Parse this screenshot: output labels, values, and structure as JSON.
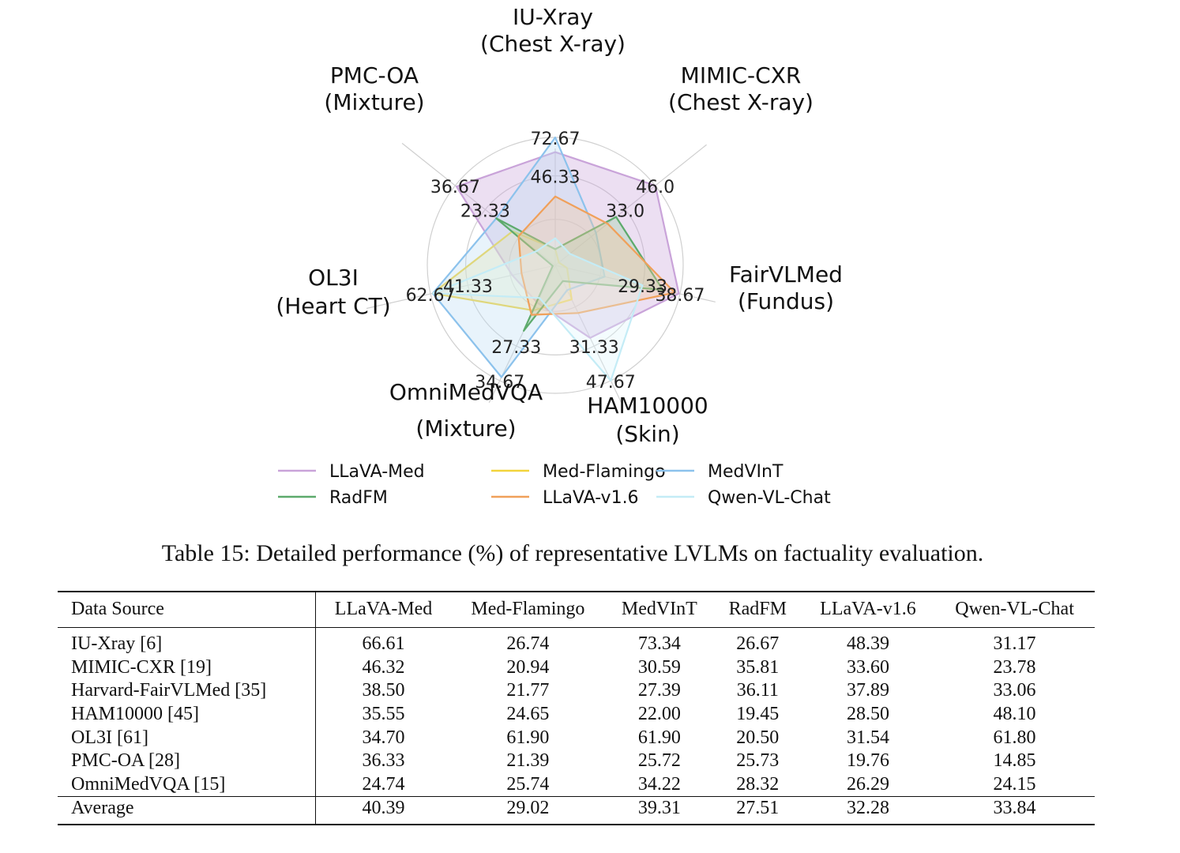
{
  "chart_data": {
    "type": "radar",
    "axes": [
      {
        "name": "IU-Xray",
        "sub": "(Chest X-ray)",
        "tick_labels": [
          "46.33",
          "72.67"
        ]
      },
      {
        "name": "MIMIC-CXR",
        "sub": "(Chest X-ray)",
        "tick_labels": [
          "33.0",
          "46.0"
        ]
      },
      {
        "name": "FairVLMed",
        "sub": "(Fundus)",
        "tick_labels": [
          "29.33",
          "38.67"
        ]
      },
      {
        "name": "HAM10000",
        "sub": "(Skin)",
        "tick_labels": [
          "31.33",
          "47.67"
        ]
      },
      {
        "name": "OmniMedVQA",
        "sub": "(Mixture)",
        "tick_labels": [
          "27.33",
          "34.67"
        ]
      },
      {
        "name": "OL3I",
        "sub": "(Heart CT)",
        "tick_labels": [
          "41.33",
          "62.67"
        ]
      },
      {
        "name": "PMC-OA",
        "sub": "(Mixture)",
        "tick_labels": [
          "23.33",
          "36.67"
        ]
      }
    ],
    "axis_ranges": [
      [
        20.0,
        72.67
      ],
      [
        20.0,
        46.0
      ],
      [
        20.0,
        38.67
      ],
      [
        15.0,
        47.67
      ],
      [
        20.0,
        34.67
      ],
      [
        20.0,
        62.67
      ],
      [
        10.0,
        36.67
      ]
    ],
    "series": [
      {
        "name": "LLaVA-Med",
        "color": "#c9a3d9",
        "fill": "#c9a3d9",
        "values": [
          66.61,
          46.32,
          38.5,
          35.55,
          24.74,
          34.7,
          36.33
        ]
      },
      {
        "name": "Med-Flamingo",
        "color": "#f2d43c",
        "fill": "#f5e79a",
        "values": [
          26.74,
          20.94,
          21.77,
          24.65,
          25.74,
          61.9,
          21.39
        ]
      },
      {
        "name": "MedVInT",
        "color": "#8cc2ec",
        "fill": "#bcdcf4",
        "values": [
          73.34,
          30.59,
          27.39,
          22.0,
          34.22,
          61.9,
          25.72
        ]
      },
      {
        "name": "RadFM",
        "color": "#5daa6c",
        "fill": "#9bd0a4",
        "values": [
          26.67,
          35.81,
          36.11,
          19.45,
          28.32,
          20.5,
          25.73
        ]
      },
      {
        "name": "LLaVA-v1.6",
        "color": "#f0a05a",
        "fill": "#f7c89d",
        "values": [
          48.39,
          33.6,
          37.89,
          28.5,
          26.29,
          31.54,
          19.76
        ]
      },
      {
        "name": "Qwen-VL-Chat",
        "color": "#c4ecf6",
        "fill": "#e0f5fb",
        "values": [
          31.17,
          23.78,
          33.06,
          48.1,
          24.15,
          61.8,
          14.85
        ]
      }
    ],
    "legend": "bottom-center",
    "grid": true
  },
  "caption": "Table 15: Detailed performance (%) of representative LVLMs on factuality evaluation.",
  "table": {
    "header": [
      "Data Source",
      "LLaVA-Med",
      "Med-Flamingo",
      "MedVInT",
      "RadFM",
      "LLaVA-v1.6",
      "Qwen-VL-Chat"
    ],
    "rows": [
      [
        "IU-Xray [6]",
        "66.61",
        "26.74",
        "73.34",
        "26.67",
        "48.39",
        "31.17"
      ],
      [
        "MIMIC-CXR [19]",
        "46.32",
        "20.94",
        "30.59",
        "35.81",
        "33.60",
        "23.78"
      ],
      [
        "Harvard-FairVLMed [35]",
        "38.50",
        "21.77",
        "27.39",
        "36.11",
        "37.89",
        "33.06"
      ],
      [
        "HAM10000 [45]",
        "35.55",
        "24.65",
        "22.00",
        "19.45",
        "28.50",
        "48.10"
      ],
      [
        "OL3I [61]",
        "34.70",
        "61.90",
        "61.90",
        "20.50",
        "31.54",
        "61.80"
      ],
      [
        "PMC-OA [28]",
        "36.33",
        "21.39",
        "25.72",
        "25.73",
        "19.76",
        "14.85"
      ],
      [
        "OmniMedVQA [15]",
        "24.74",
        "25.74",
        "34.22",
        "28.32",
        "26.29",
        "24.15"
      ]
    ],
    "footer": [
      "Average",
      "40.39",
      "29.02",
      "39.31",
      "27.51",
      "32.28",
      "33.84"
    ]
  }
}
